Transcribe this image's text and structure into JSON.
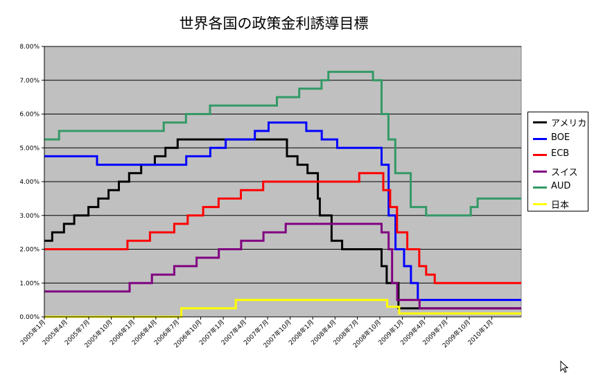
{
  "colors": {
    "plot_background": "#C0C0C0",
    "gridline": "#000000",
    "アメリカ": "#000000",
    "BOE": "#0000FF",
    "ECB": "#FF0000",
    "スイス": "#800080",
    "AUD": "#339966",
    "日本": "#FFFF00"
  },
  "chart_data": {
    "type": "line",
    "title": "世界各国の政策金利誘導目標",
    "xlabel": "",
    "ylabel": "",
    "ylim": [
      0,
      8
    ],
    "y_ticks": [
      "0.00%",
      "1.00%",
      "2.00%",
      "3.00%",
      "4.00%",
      "5.00%",
      "6.00%",
      "7.00%",
      "8.00%"
    ],
    "x_range": [
      "2005-01-01",
      "2010-05-01"
    ],
    "x_ticks": [
      {
        "date": "2005-01-01",
        "label": "2005年1月"
      },
      {
        "date": "2005-04-01",
        "label": "2005年4月"
      },
      {
        "date": "2005-07-01",
        "label": "2005年7月"
      },
      {
        "date": "2005-10-01",
        "label": "2005年10月"
      },
      {
        "date": "2006-01-01",
        "label": "2006年1月"
      },
      {
        "date": "2006-04-01",
        "label": "2006年4月"
      },
      {
        "date": "2006-07-01",
        "label": "2006年7月"
      },
      {
        "date": "2006-10-01",
        "label": "2006年10月"
      },
      {
        "date": "2007-01-01",
        "label": "2007年1月"
      },
      {
        "date": "2007-04-01",
        "label": "2007年4月"
      },
      {
        "date": "2007-07-01",
        "label": "2007年7月"
      },
      {
        "date": "2007-10-01",
        "label": "2007年10月"
      },
      {
        "date": "2008-01-01",
        "label": "2008年1月"
      },
      {
        "date": "2008-04-01",
        "label": "2008年4月"
      },
      {
        "date": "2008-07-01",
        "label": "2008年7月"
      },
      {
        "date": "2008-10-01",
        "label": "2008年10月"
      },
      {
        "date": "2009-01-01",
        "label": "2009年1月"
      },
      {
        "date": "2009-04-01",
        "label": "2009年4月"
      },
      {
        "date": "2009-07-01",
        "label": "2009年7月"
      },
      {
        "date": "2009-10-01",
        "label": "2009年10月"
      },
      {
        "date": "2010-01-01",
        "label": "2010年1月"
      }
    ],
    "grid": "horizontal",
    "legend_position": "right",
    "series": [
      {
        "name": "アメリカ",
        "color_key": "アメリカ",
        "steps": [
          [
            "2005-01-01",
            2.25
          ],
          [
            "2005-02-02",
            2.5
          ],
          [
            "2005-03-22",
            2.75
          ],
          [
            "2005-05-03",
            3.0
          ],
          [
            "2005-06-30",
            3.25
          ],
          [
            "2005-08-09",
            3.5
          ],
          [
            "2005-09-20",
            3.75
          ],
          [
            "2005-11-01",
            4.0
          ],
          [
            "2005-12-13",
            4.25
          ],
          [
            "2006-01-31",
            4.5
          ],
          [
            "2006-03-28",
            4.75
          ],
          [
            "2006-05-10",
            5.0
          ],
          [
            "2006-06-29",
            5.25
          ],
          [
            "2007-09-18",
            4.75
          ],
          [
            "2007-10-31",
            4.5
          ],
          [
            "2007-12-11",
            4.25
          ],
          [
            "2008-01-22",
            3.5
          ],
          [
            "2008-01-30",
            3.0
          ],
          [
            "2008-03-18",
            2.25
          ],
          [
            "2008-04-30",
            2.0
          ],
          [
            "2008-10-08",
            1.5
          ],
          [
            "2008-10-29",
            1.0
          ],
          [
            "2008-12-16",
            0.25
          ],
          [
            "2010-05-01",
            0.25
          ]
        ]
      },
      {
        "name": "BOE",
        "color_key": "BOE",
        "steps": [
          [
            "2005-01-01",
            4.75
          ],
          [
            "2005-08-04",
            4.5
          ],
          [
            "2006-08-03",
            4.75
          ],
          [
            "2006-11-09",
            5.0
          ],
          [
            "2007-01-11",
            5.25
          ],
          [
            "2007-05-10",
            5.5
          ],
          [
            "2007-07-05",
            5.75
          ],
          [
            "2007-12-06",
            5.5
          ],
          [
            "2008-02-07",
            5.25
          ],
          [
            "2008-04-10",
            5.0
          ],
          [
            "2008-10-08",
            4.5
          ],
          [
            "2008-11-06",
            3.0
          ],
          [
            "2008-12-04",
            2.0
          ],
          [
            "2009-01-08",
            1.5
          ],
          [
            "2009-02-05",
            1.0
          ],
          [
            "2009-03-05",
            0.5
          ],
          [
            "2010-05-01",
            0.5
          ]
        ]
      },
      {
        "name": "ECB",
        "color_key": "ECB",
        "steps": [
          [
            "2005-01-01",
            2.0
          ],
          [
            "2005-12-06",
            2.25
          ],
          [
            "2006-03-08",
            2.5
          ],
          [
            "2006-06-15",
            2.75
          ],
          [
            "2006-08-09",
            3.0
          ],
          [
            "2006-10-11",
            3.25
          ],
          [
            "2006-12-13",
            3.5
          ],
          [
            "2007-03-14",
            3.75
          ],
          [
            "2007-06-13",
            4.0
          ],
          [
            "2008-07-09",
            4.25
          ],
          [
            "2008-10-15",
            3.75
          ],
          [
            "2008-11-12",
            3.25
          ],
          [
            "2008-12-10",
            2.5
          ],
          [
            "2009-01-21",
            2.0
          ],
          [
            "2009-03-11",
            1.5
          ],
          [
            "2009-04-08",
            1.25
          ],
          [
            "2009-05-13",
            1.0
          ],
          [
            "2010-05-01",
            1.0
          ]
        ]
      },
      {
        "name": "スイス",
        "color_key": "スイス",
        "steps": [
          [
            "2005-01-01",
            0.75
          ],
          [
            "2005-12-15",
            1.0
          ],
          [
            "2006-03-16",
            1.25
          ],
          [
            "2006-06-15",
            1.5
          ],
          [
            "2006-09-14",
            1.75
          ],
          [
            "2006-12-14",
            2.0
          ],
          [
            "2007-03-15",
            2.25
          ],
          [
            "2007-06-14",
            2.5
          ],
          [
            "2007-09-13",
            2.75
          ],
          [
            "2008-10-08",
            2.5
          ],
          [
            "2008-11-06",
            2.0
          ],
          [
            "2008-11-20",
            1.0
          ],
          [
            "2008-12-11",
            0.5
          ],
          [
            "2009-03-12",
            0.25
          ],
          [
            "2010-05-01",
            0.25
          ]
        ]
      },
      {
        "name": "AUD",
        "color_key": "AUD",
        "steps": [
          [
            "2005-01-01",
            5.25
          ],
          [
            "2005-03-02",
            5.5
          ],
          [
            "2006-05-03",
            5.75
          ],
          [
            "2006-08-02",
            6.0
          ],
          [
            "2006-11-08",
            6.25
          ],
          [
            "2007-08-08",
            6.5
          ],
          [
            "2007-11-07",
            6.75
          ],
          [
            "2008-02-06",
            7.0
          ],
          [
            "2008-03-05",
            7.25
          ],
          [
            "2008-09-03",
            7.0
          ],
          [
            "2008-10-08",
            6.0
          ],
          [
            "2008-11-05",
            5.25
          ],
          [
            "2008-12-03",
            4.25
          ],
          [
            "2009-02-04",
            3.25
          ],
          [
            "2009-04-08",
            3.0
          ],
          [
            "2009-10-07",
            3.25
          ],
          [
            "2009-11-04",
            3.5
          ],
          [
            "2010-05-01",
            3.5
          ]
        ]
      },
      {
        "name": "日本",
        "color_key": "日本",
        "steps": [
          [
            "2005-01-01",
            0.0
          ],
          [
            "2006-07-14",
            0.25
          ],
          [
            "2007-02-21",
            0.5
          ],
          [
            "2008-10-31",
            0.3
          ],
          [
            "2008-12-19",
            0.1
          ],
          [
            "2010-05-01",
            0.1
          ]
        ]
      }
    ]
  }
}
